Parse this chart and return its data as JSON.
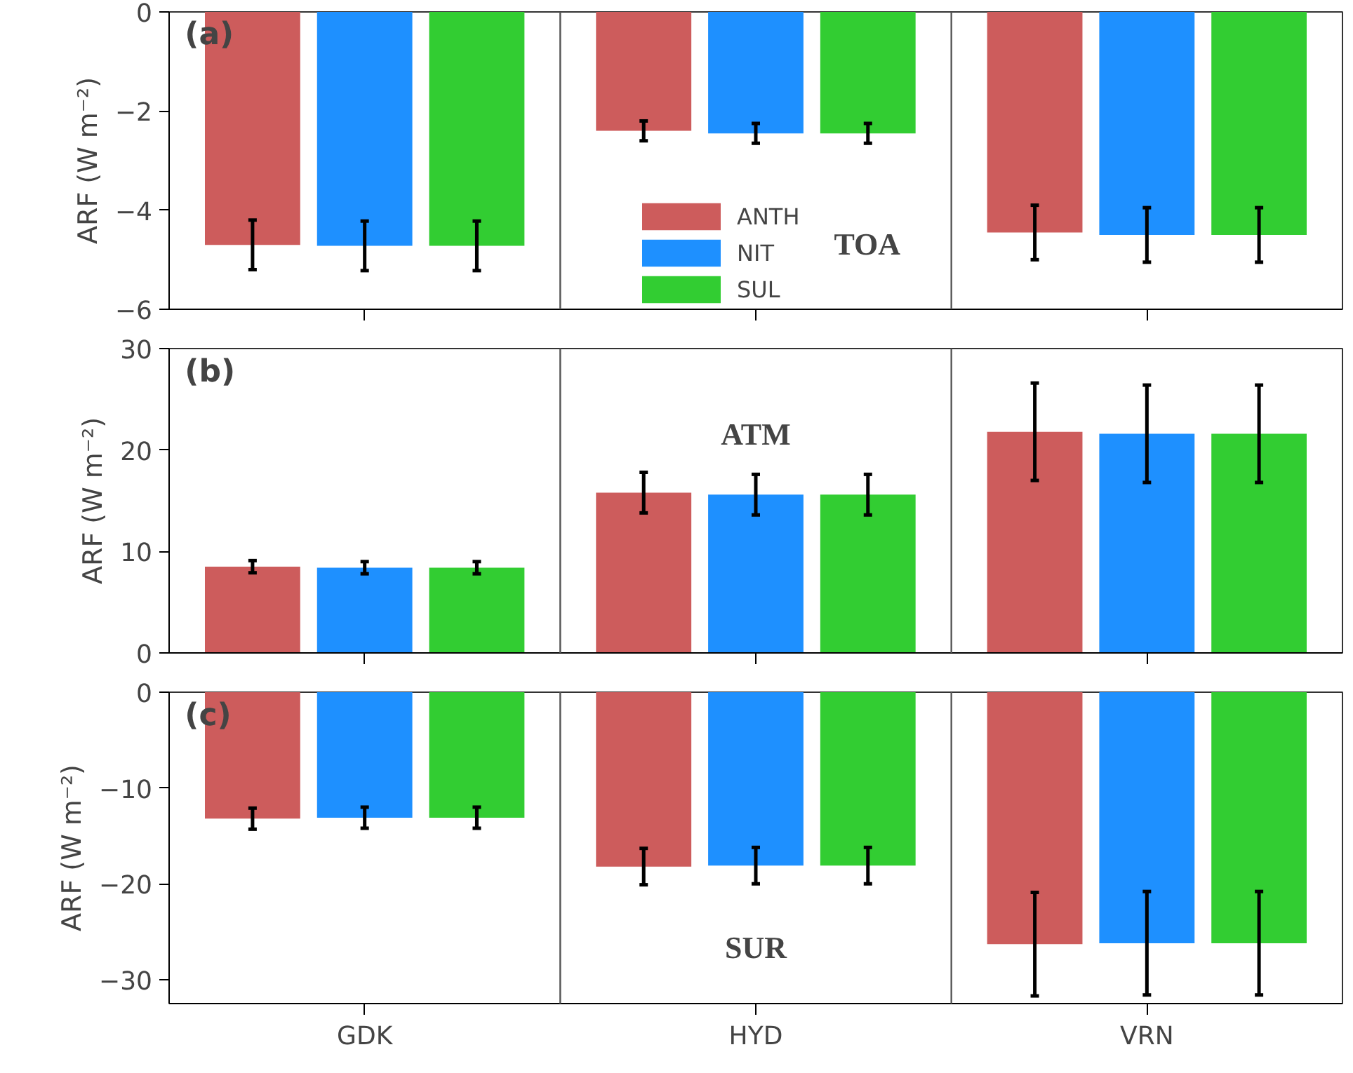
{
  "chart_data": [
    {
      "type": "bar",
      "categories": [
        null,
        null,
        null
      ],
      "ylabel": "ARF (W m⁻²)",
      "ylim": [
        -6,
        0
      ],
      "yticks": [
        {
          "value": -6,
          "label": "−6"
        },
        {
          "value": -4,
          "label": "−4"
        },
        {
          "value": -2,
          "label": "−2"
        },
        0
      ],
      "tick_labels": "y",
      "legend": "bottom",
      "grid": false,
      "annotations": [
        "(a)",
        "TOA"
      ],
      "series": [
        {
          "name": "ANTH",
          "color": "#cd5c5c",
          "values": [
            -4.7,
            -2.4,
            -4.45
          ],
          "errors": [
            0.5,
            0.2,
            0.55
          ]
        },
        {
          "name": "NIT",
          "color": "#1e90ff",
          "values": [
            -4.72,
            -2.45,
            -4.5
          ],
          "errors": [
            0.5,
            0.2,
            0.55
          ]
        },
        {
          "name": "SUL",
          "color": "#32cd32",
          "values": [
            -4.72,
            -2.45,
            -4.5
          ],
          "errors": [
            0.5,
            0.2,
            0.55
          ]
        }
      ]
    },
    {
      "type": "bar",
      "categories": [
        null,
        null,
        null
      ],
      "ylabel": "ARF (W m⁻²)",
      "ylim": [
        0,
        30
      ],
      "yticks": [
        0,
        10,
        20,
        30
      ],
      "tick_labels": "y",
      "grid": false,
      "annotations": [
        "(b)",
        "ATM"
      ],
      "series": [
        {
          "color": "#cd5c5c",
          "values": [
            8.5,
            15.8,
            21.8
          ],
          "errors": [
            0.6,
            2.0,
            4.8
          ]
        },
        {
          "color": "#1e90ff",
          "values": [
            8.4,
            15.6,
            21.6
          ],
          "errors": [
            0.6,
            2.0,
            4.8
          ]
        },
        {
          "color": "#32cd32",
          "values": [
            8.4,
            15.6,
            21.6
          ],
          "errors": [
            0.6,
            2.0,
            4.8
          ]
        }
      ]
    },
    {
      "type": "bar",
      "categories": [
        "GDK",
        "HYD",
        "VRN"
      ],
      "ylabel": "ARF (W m⁻²)",
      "ylim": [
        -32.5,
        0
      ],
      "yticks": [
        {
          "value": -30,
          "label": "−30"
        },
        {
          "value": -20,
          "label": "−20"
        },
        {
          "value": -10,
          "label": "−10"
        },
        0
      ],
      "grid": false,
      "annotations": [
        "(c)",
        "SUR"
      ],
      "series": [
        {
          "color": "#cd5c5c",
          "values": [
            -13.2,
            -18.2,
            -26.3
          ],
          "errors": [
            1.1,
            1.9,
            5.4
          ]
        },
        {
          "color": "#1e90ff",
          "values": [
            -13.1,
            -18.1,
            -26.2
          ],
          "errors": [
            1.1,
            1.9,
            5.4
          ]
        },
        {
          "color": "#32cd32",
          "values": [
            -13.1,
            -18.1,
            -26.2
          ],
          "errors": [
            1.1,
            1.9,
            5.4
          ]
        }
      ]
    }
  ]
}
